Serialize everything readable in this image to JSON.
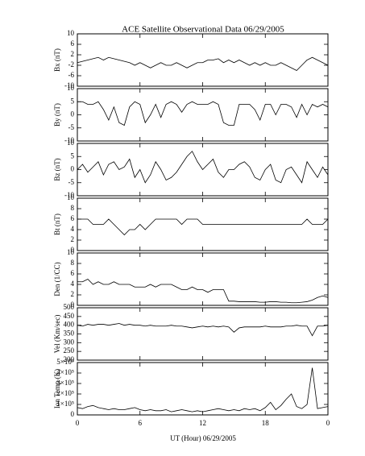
{
  "chart_data": {
    "type": "line",
    "title": "ACE Satellite Observational Data   06/29/2005",
    "xlabel": "UT (Hour)   06/29/2005",
    "xlim": [
      0,
      24
    ],
    "xticks": [
      0,
      6,
      12,
      18,
      {
        "value": 24,
        "label": "0"
      }
    ],
    "x": [
      0,
      0.5,
      1,
      1.5,
      2,
      2.5,
      3,
      3.5,
      4,
      4.5,
      5,
      5.5,
      6,
      6.5,
      7,
      7.5,
      8,
      8.5,
      9,
      9.5,
      10,
      10.5,
      11,
      11.5,
      12,
      12.5,
      13,
      13.5,
      14,
      14.5,
      15,
      15.5,
      16,
      16.5,
      17,
      17.5,
      18,
      18.5,
      19,
      19.5,
      20,
      20.5,
      21,
      21.5,
      22,
      22.5,
      23,
      23.5,
      24
    ],
    "panels": [
      {
        "ylabel": "Bx (nT)",
        "ylim": [
          -10,
          10
        ],
        "yticks": [
          -10,
          -6,
          -2,
          2,
          6,
          10
        ],
        "values": [
          -1,
          -0.5,
          0,
          0.5,
          1,
          0,
          1,
          0.5,
          0,
          -0.5,
          -1,
          -2,
          -1,
          -2,
          -3,
          -2,
          -1,
          -2,
          -2,
          -1,
          -2,
          -3,
          -2,
          -1,
          -1,
          0,
          0,
          0.5,
          -1,
          0,
          -1,
          0,
          -1,
          -2,
          -1,
          -2,
          -1,
          -2,
          -2,
          -1,
          -2,
          -3,
          -4,
          -2,
          0,
          1,
          0,
          -1,
          -2
        ]
      },
      {
        "ylabel": "By (nT)",
        "ylim": [
          -10,
          10
        ],
        "yticks": [
          -10,
          -5,
          0,
          5,
          10
        ],
        "values": [
          5,
          5,
          4,
          4,
          5,
          2,
          -2,
          3,
          -3,
          -4,
          3,
          5,
          4,
          -3,
          0,
          4,
          -1,
          4,
          5,
          4,
          1,
          4,
          5,
          4,
          4,
          4,
          5,
          4,
          -3,
          -4,
          -4,
          4,
          4,
          4,
          2,
          -2,
          4,
          4,
          0,
          4,
          4,
          3,
          -1,
          4,
          0,
          4,
          3,
          4,
          3
        ]
      },
      {
        "ylabel": "Bz (nT)",
        "ylim": [
          -10,
          10
        ],
        "yticks": [
          -10,
          -5,
          0,
          5,
          10
        ],
        "values": [
          0,
          2,
          -1,
          1,
          3,
          -2,
          2,
          3,
          0,
          1,
          4,
          -3,
          0,
          -5,
          -2,
          3,
          0,
          -4,
          -3,
          -1,
          2,
          5,
          7,
          3,
          0,
          2,
          4,
          -1,
          -3,
          0,
          0,
          2,
          3,
          1,
          -3,
          -4,
          0,
          2,
          -4,
          -5,
          0,
          1,
          -2,
          -5,
          3,
          0,
          -3,
          1,
          -2
        ]
      },
      {
        "ylabel": "Bt (nT)",
        "ylim": [
          0,
          10
        ],
        "yticks": [
          0,
          2,
          4,
          6,
          8,
          10
        ],
        "values": [
          6,
          6,
          6,
          5,
          5,
          5,
          6,
          5,
          4,
          3,
          4,
          4,
          5,
          4,
          5,
          6,
          6,
          6,
          6,
          6,
          5,
          6,
          6,
          6,
          5,
          5,
          5,
          5,
          5,
          5,
          5,
          5,
          5,
          5,
          5,
          5,
          5,
          5,
          5,
          5,
          5,
          5,
          5,
          5,
          6,
          5,
          5,
          5,
          6
        ]
      },
      {
        "ylabel": "Den (1/CC)",
        "ylim": [
          0,
          10
        ],
        "yticks": [
          0,
          2,
          4,
          6,
          8,
          10
        ],
        "values": [
          4.5,
          4.5,
          5,
          4,
          4.5,
          4,
          4,
          4.5,
          4,
          4,
          4,
          3.5,
          3.5,
          3.5,
          4,
          3.5,
          4,
          4,
          4,
          3.5,
          3,
          3,
          3.5,
          3,
          3,
          2.5,
          3,
          3,
          3,
          0.8,
          0.8,
          0.7,
          0.7,
          0.7,
          0.7,
          0.6,
          0.6,
          0.7,
          0.7,
          0.6,
          0.6,
          0.5,
          0.5,
          0.6,
          0.7,
          1,
          1.5,
          1.8,
          1.5
        ]
      },
      {
        "ylabel": "Vel (Km/sec)",
        "ylim": [
          200,
          500
        ],
        "yticks": [
          200,
          250,
          300,
          350,
          400,
          450,
          500
        ],
        "values": [
          400,
          395,
          405,
          400,
          405,
          405,
          400,
          405,
          410,
          400,
          405,
          400,
          400,
          395,
          400,
          395,
          395,
          395,
          400,
          395,
          395,
          390,
          385,
          390,
          395,
          390,
          395,
          390,
          395,
          390,
          360,
          385,
          390,
          390,
          390,
          390,
          395,
          390,
          390,
          390,
          395,
          395,
          400,
          395,
          395,
          340,
          395,
          395,
          400
        ]
      },
      {
        "ylabel": "Ion Temp (K)",
        "ylim": [
          0,
          500000
        ],
        "yticks": [
          0,
          {
            "value": 100000,
            "label": "1×10⁵"
          },
          {
            "value": 200000,
            "label": "2×10⁵"
          },
          {
            "value": 300000,
            "label": "3×10⁵"
          },
          {
            "value": 400000,
            "label": "4×10⁵"
          },
          {
            "value": 500000,
            "label": "5×10⁵"
          }
        ],
        "values": [
          70000,
          60000,
          80000,
          90000,
          70000,
          60000,
          50000,
          60000,
          50000,
          50000,
          60000,
          70000,
          50000,
          40000,
          50000,
          40000,
          40000,
          50000,
          30000,
          40000,
          50000,
          40000,
          30000,
          40000,
          30000,
          40000,
          50000,
          60000,
          50000,
          40000,
          50000,
          40000,
          60000,
          50000,
          60000,
          40000,
          70000,
          120000,
          50000,
          90000,
          150000,
          200000,
          80000,
          60000,
          100000,
          450000,
          60000,
          70000,
          80000
        ]
      }
    ]
  }
}
